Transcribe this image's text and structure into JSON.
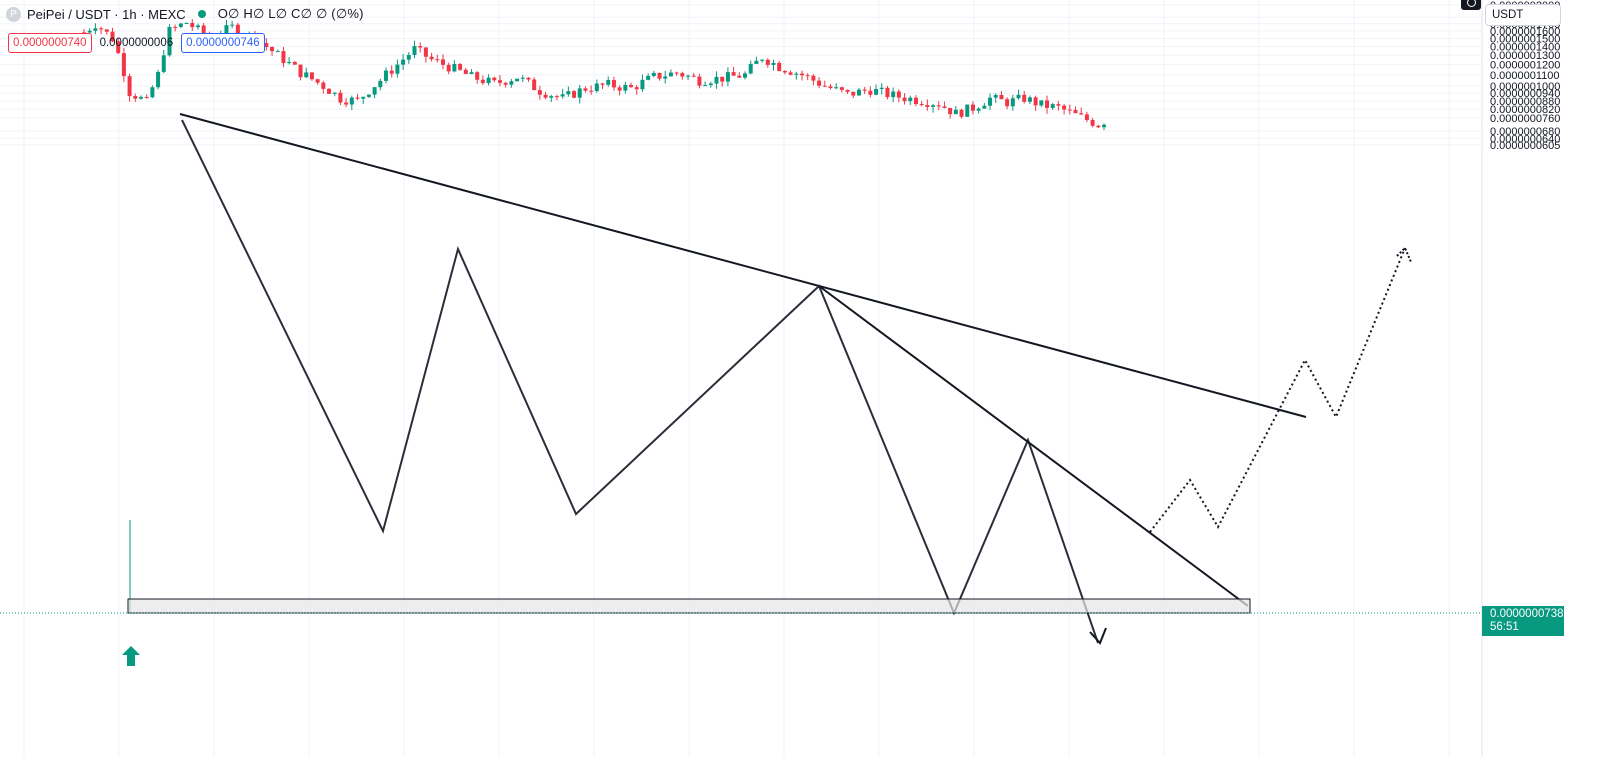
{
  "header": {
    "logo_letter": "P",
    "symbol_line": "PeiPei / USDT · 1h · MEXC",
    "ohlc_line": "O∅ H∅ L∅ C∅ ∅ (∅%)",
    "bid": "0.0000000740",
    "spread": "0.0000000006",
    "ask": "0.0000000746"
  },
  "currency_selector": {
    "value": "USDT"
  },
  "current_price": {
    "value": "0.0000000738",
    "countdown": "56:51"
  },
  "colors": {
    "up": "#089981",
    "down": "#f23645",
    "grid": "#f0f3fa",
    "line": "#131722",
    "zone_fill": "#e6e6e6"
  },
  "chart_data": {
    "type": "candlestick",
    "timeframe": "1h",
    "scale": "log",
    "grid": true,
    "y_axis_position": "right",
    "ylim": [
      6e-08,
      2.05e-07
    ],
    "y_ticks": [
      "0.0000002000",
      "0.0000001800",
      "0.0000001700",
      "0.0000001600",
      "0.0000001500",
      "0.0000001400",
      "0.0000001300",
      "0.0000001200",
      "0.0000001100",
      "0.0000001000",
      "0.0000000940",
      "0.0000000880",
      "0.0000000820",
      "0.0000000760",
      "0.0000000680",
      "0.0000000640",
      "0.0000000605"
    ],
    "last_price": 7.38e-08,
    "candle_count": 180,
    "candles_close_path": [
      [
        0,
        158
      ],
      [
        2,
        170
      ],
      [
        5,
        150
      ],
      [
        8,
        95
      ],
      [
        11,
        87
      ],
      [
        13,
        110
      ],
      [
        15,
        160
      ],
      [
        18,
        172
      ],
      [
        22,
        150
      ],
      [
        26,
        165
      ],
      [
        30,
        150
      ],
      [
        34,
        130
      ],
      [
        38,
        112
      ],
      [
        42,
        100
      ],
      [
        45,
        90
      ],
      [
        48,
        88
      ],
      [
        52,
        105
      ],
      [
        55,
        120
      ],
      [
        58,
        137
      ],
      [
        61,
        125
      ],
      [
        64,
        118
      ],
      [
        68,
        108
      ],
      [
        72,
        102
      ],
      [
        76,
        108
      ],
      [
        80,
        96
      ],
      [
        84,
        90
      ],
      [
        88,
        98
      ],
      [
        92,
        101
      ],
      [
        96,
        98
      ],
      [
        100,
        108
      ],
      [
        104,
        112
      ],
      [
        108,
        105
      ],
      [
        112,
        107
      ],
      [
        116,
        110
      ],
      [
        119,
        128
      ],
      [
        122,
        118
      ],
      [
        126,
        110
      ],
      [
        130,
        100
      ],
      [
        134,
        93
      ],
      [
        138,
        97
      ],
      [
        142,
        92
      ],
      [
        146,
        89
      ],
      [
        150,
        86
      ],
      [
        153,
        79
      ],
      [
        156,
        83
      ],
      [
        159,
        90
      ],
      [
        162,
        87
      ],
      [
        165,
        90
      ],
      [
        168,
        85
      ],
      [
        171,
        83
      ],
      [
        174,
        78
      ],
      [
        176,
        75
      ],
      [
        178,
        72
      ],
      [
        180,
        76
      ]
    ],
    "drawings": {
      "descending_trendline": [
        [
          1.79e-07,
          1.06e-07
        ]
      ],
      "pattern_peaks": [
        1.78e-07,
        8.5e-08,
        1.42e-07,
        8.7e-08,
        1.32e-07,
        7.4e-08,
        1.01e-07,
        7e-08
      ],
      "support_zone": [
        7.38e-08,
        7.58e-08
      ],
      "projection_targets": [
        9.4e-08,
        1.16e-07,
        1.42e-07
      ]
    }
  }
}
